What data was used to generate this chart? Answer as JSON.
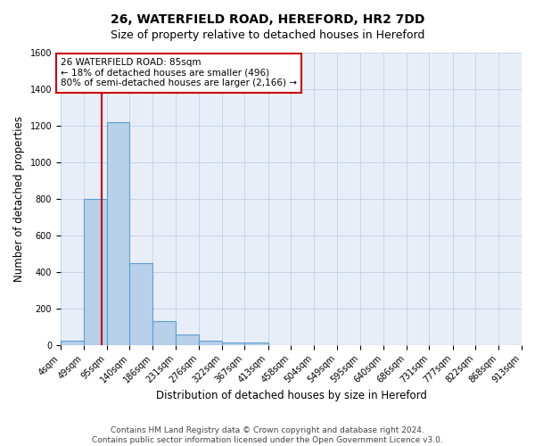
{
  "title_line1": "26, WATERFIELD ROAD, HEREFORD, HR2 7DD",
  "title_line2": "Size of property relative to detached houses in Hereford",
  "xlabel": "Distribution of detached houses by size in Hereford",
  "ylabel": "Number of detached properties",
  "bar_values": [
    25,
    800,
    1220,
    450,
    130,
    55,
    25,
    15,
    15,
    0,
    0,
    0,
    0,
    0,
    0,
    0,
    0,
    0,
    0,
    0
  ],
  "bin_labels": [
    "4sqm",
    "49sqm",
    "95sqm",
    "140sqm",
    "186sqm",
    "231sqm",
    "276sqm",
    "322sqm",
    "367sqm",
    "413sqm",
    "458sqm",
    "504sqm",
    "549sqm",
    "595sqm",
    "640sqm",
    "686sqm",
    "731sqm",
    "777sqm",
    "822sqm",
    "868sqm",
    "913sqm"
  ],
  "bin_edges": [
    4,
    49,
    95,
    140,
    186,
    231,
    276,
    322,
    367,
    413,
    458,
    504,
    549,
    595,
    640,
    686,
    731,
    777,
    822,
    868,
    913
  ],
  "bar_color": "#b8d0ea",
  "bar_edge_color": "#5a9fd4",
  "grid_color": "#c8d4e8",
  "bg_color": "#e8eef8",
  "vline_x": 85,
  "vline_color": "#cc0000",
  "ylim": [
    0,
    1600
  ],
  "annotation_line1": "26 WATERFIELD ROAD: 85sqm",
  "annotation_line2": "← 18% of detached houses are smaller (496)",
  "annotation_line3": "80% of semi-detached houses are larger (2,166) →",
  "annotation_box_color": "#ffffff",
  "annotation_box_edge": "#cc0000",
  "footer_line1": "Contains HM Land Registry data © Crown copyright and database right 2024.",
  "footer_line2": "Contains public sector information licensed under the Open Government Licence v3.0.",
  "title_fontsize": 10,
  "subtitle_fontsize": 9,
  "axis_label_fontsize": 8.5,
  "tick_fontsize": 7,
  "annotation_fontsize": 7.5,
  "footer_fontsize": 6.5
}
